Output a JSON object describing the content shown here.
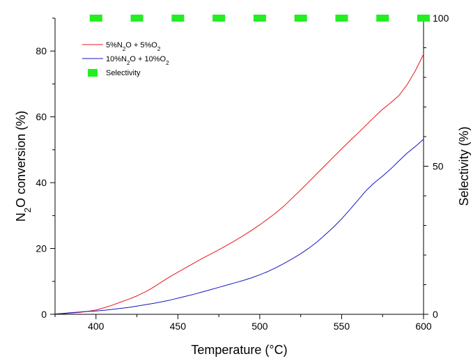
{
  "chart_data": {
    "type": "line",
    "x_axis": {
      "label": "Temperature (°C)",
      "range": [
        375,
        600
      ],
      "ticks": [
        400,
        450,
        500,
        550,
        600
      ],
      "tick_labels": [
        "400",
        "450",
        "500",
        "550",
        "600"
      ],
      "minor_ticks": [
        375,
        425,
        475,
        525,
        575
      ]
    },
    "y_axis_left": {
      "label_main": "N",
      "label_sub": "2",
      "label_rest": "O conversion (%)",
      "range": [
        0,
        90
      ],
      "ticks": [
        0,
        20,
        40,
        60,
        80
      ],
      "tick_labels": [
        "0",
        "20",
        "40",
        "60",
        "80"
      ],
      "minor_ticks": [
        10,
        30,
        50,
        70,
        90
      ]
    },
    "y_axis_right": {
      "label": "Selectivity (%)",
      "range": [
        0,
        100
      ],
      "ticks": [
        0,
        50,
        100
      ],
      "tick_labels": [
        "0",
        "50",
        "100"
      ],
      "minor_ticks": [
        10,
        20,
        30,
        40,
        60,
        70,
        80,
        90
      ]
    },
    "series": [
      {
        "name": "5%N2O + 5%O2",
        "legend_parts": [
          [
            "5%N",
            ""
          ],
          [
            "2",
            "sub"
          ],
          [
            "O + 5%O",
            ""
          ],
          [
            "2",
            "sub"
          ]
        ],
        "color": "#e8141b",
        "axis": "left",
        "x": [
          375,
          380,
          385,
          390,
          395,
          400,
          405,
          410,
          415,
          420,
          425,
          430,
          435,
          440,
          445,
          450,
          455,
          460,
          465,
          470,
          475,
          480,
          485,
          490,
          495,
          500,
          505,
          510,
          515,
          520,
          525,
          530,
          535,
          540,
          545,
          550,
          555,
          560,
          565,
          570,
          575,
          580,
          585,
          590,
          595,
          600
        ],
        "y": [
          0.1,
          0.2,
          0.4,
          0.6,
          0.9,
          1.3,
          2.0,
          2.8,
          3.7,
          4.6,
          5.6,
          6.8,
          8.2,
          9.8,
          11.4,
          12.8,
          14.2,
          15.6,
          17.0,
          18.3,
          19.6,
          21.0,
          22.4,
          23.9,
          25.5,
          27.2,
          29.0,
          30.9,
          33.0,
          35.4,
          37.8,
          40.3,
          42.8,
          45.3,
          47.8,
          50.3,
          52.7,
          55.1,
          57.5,
          60.0,
          62.3,
          64.3,
          66.5,
          69.8,
          74.0,
          79.0
        ]
      },
      {
        "name": "10%N2O + 10%O2",
        "legend_parts": [
          [
            "10%N",
            ""
          ],
          [
            "2",
            "sub"
          ],
          [
            "O + 10%O",
            ""
          ],
          [
            "2",
            "sub"
          ]
        ],
        "color": "#1515c0",
        "axis": "left",
        "x": [
          375,
          380,
          385,
          390,
          395,
          400,
          405,
          410,
          415,
          420,
          425,
          430,
          435,
          440,
          445,
          450,
          455,
          460,
          465,
          470,
          475,
          480,
          485,
          490,
          495,
          500,
          505,
          510,
          515,
          520,
          525,
          530,
          535,
          540,
          545,
          550,
          555,
          560,
          565,
          570,
          575,
          580,
          585,
          590,
          595,
          600
        ],
        "y": [
          0.1,
          0.3,
          0.5,
          0.7,
          0.9,
          1.0,
          1.2,
          1.5,
          1.8,
          2.1,
          2.5,
          2.9,
          3.3,
          3.8,
          4.3,
          4.9,
          5.5,
          6.1,
          6.8,
          7.5,
          8.2,
          8.9,
          9.6,
          10.3,
          11.1,
          12.0,
          13.0,
          14.2,
          15.5,
          16.9,
          18.4,
          20.1,
          22.0,
          24.2,
          26.5,
          29.0,
          31.8,
          34.7,
          37.6,
          40.0,
          42.0,
          44.2,
          46.6,
          49.0,
          51.0,
          53.2
        ]
      },
      {
        "name": "Selectivity",
        "color": "#22ee22",
        "axis": "right",
        "marker": "square",
        "x": [
          400,
          425,
          450,
          475,
          500,
          525,
          550,
          575,
          600
        ],
        "y": [
          100,
          100,
          100,
          100,
          100,
          100,
          100,
          100,
          100
        ]
      }
    ],
    "legend_position": "top-left",
    "grid": false
  }
}
